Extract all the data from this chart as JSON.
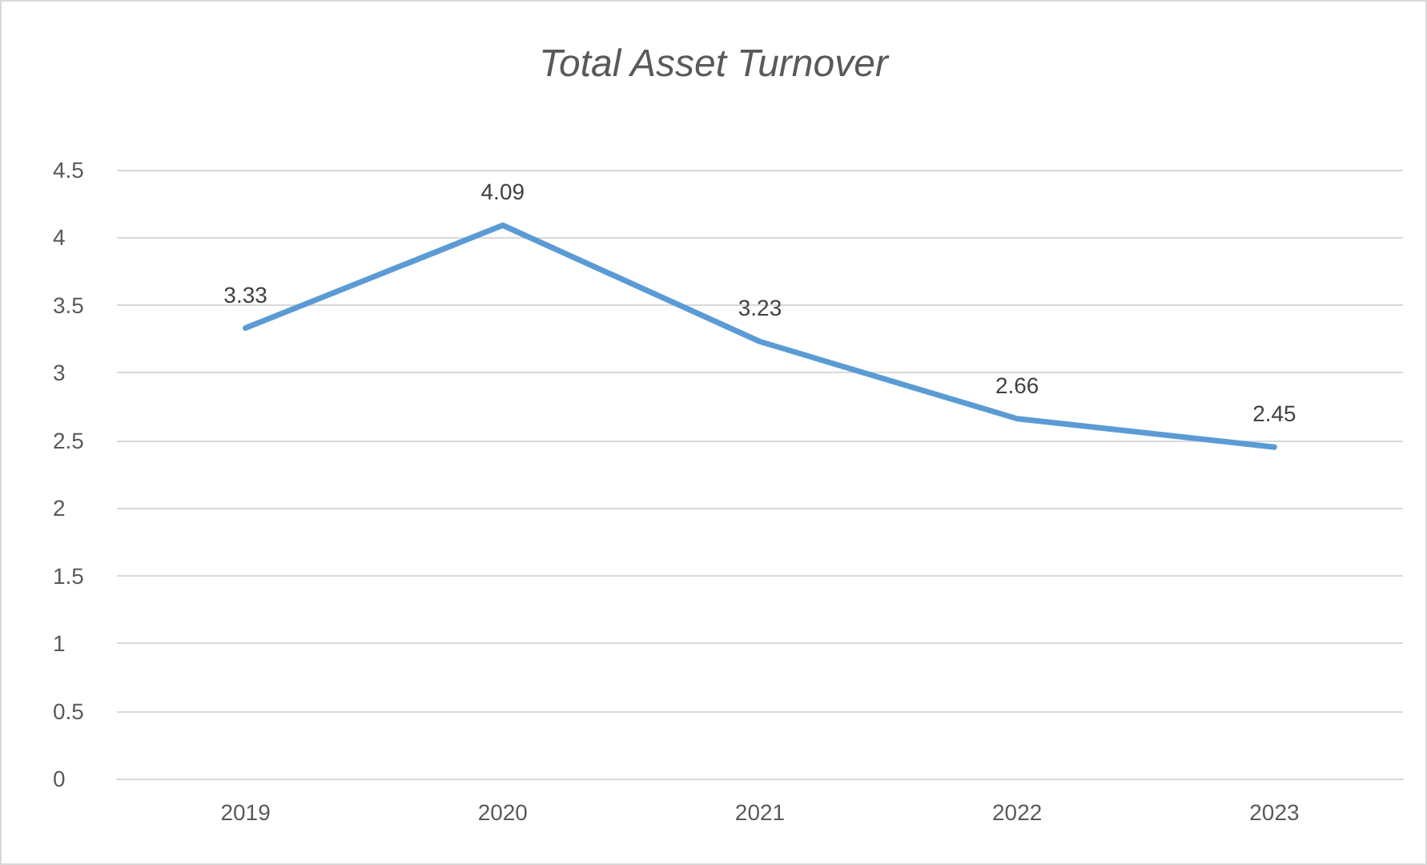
{
  "chart_data": {
    "type": "line",
    "title": "Total Asset Turnover",
    "categories": [
      "2019",
      "2020",
      "2021",
      "2022",
      "2023"
    ],
    "series": [
      {
        "color": "#5b9bd5",
        "values": [
          3.33,
          4.09,
          3.23,
          2.66,
          2.45
        ]
      }
    ],
    "ylim": [
      0,
      4.5
    ],
    "yticks": [
      0,
      0.5,
      1,
      1.5,
      2,
      2.5,
      3,
      3.5,
      4,
      4.5
    ],
    "grid": "y",
    "marker": "none",
    "line_style": "solid",
    "data_labels": true
  }
}
